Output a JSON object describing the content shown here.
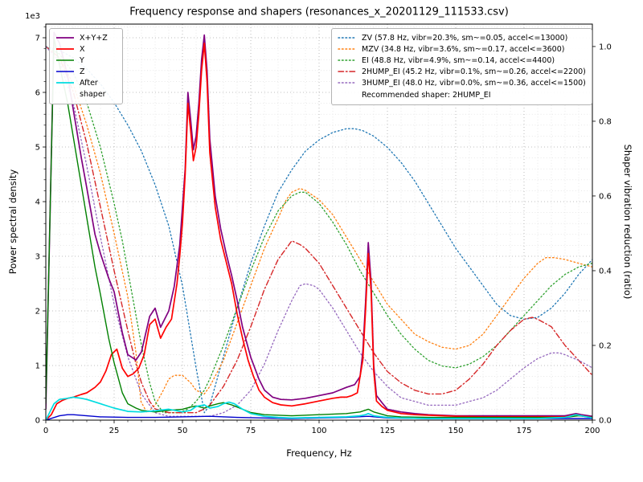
{
  "chart_data": {
    "type": "line",
    "title": "Frequency response and shapers (resonances_x_20201129_111533.csv)",
    "xlabel": "Frequency, Hz",
    "ylabel_left": "Power spectral density",
    "ylabel_right": "Shaper vibration reduction (ratio)",
    "legend_note": "Recommended shaper: 2HUMP_EI",
    "grid": {
      "major": true,
      "minor": true
    },
    "x_axis": {
      "lim": [
        0,
        200
      ],
      "minor_step": 5,
      "tick_vals": [
        0,
        25,
        50,
        75,
        100,
        125,
        150,
        175,
        200
      ],
      "tick_labels": [
        "0",
        "25",
        "50",
        "75",
        "100",
        "125",
        "150",
        "175",
        "200"
      ]
    },
    "left_axis": {
      "lim": [
        0,
        7.25
      ],
      "unit_scale": 1000,
      "offset_label": "1e3",
      "minor_step": 0.2,
      "tick_vals": [
        0,
        1,
        2,
        3,
        4,
        5,
        6,
        7
      ],
      "tick_labels": [
        "0",
        "1",
        "2",
        "3",
        "4",
        "5",
        "6",
        "7"
      ]
    },
    "right_axis": {
      "lim": [
        0,
        1.06
      ],
      "tick_vals": [
        0,
        0.2,
        0.4,
        0.6,
        0.8,
        1.0
      ],
      "tick_labels": [
        "0.0",
        "0.2",
        "0.4",
        "0.6",
        "0.8",
        "1.0"
      ]
    },
    "series": [
      {
        "name": "ZV",
        "label": "ZV (57.8 Hz, vibr=20.3%, sm~=0.05, accel<=13000)",
        "legend": "right",
        "axis": "right",
        "color": "#1f77b4",
        "style": "dotted",
        "width": 1.3,
        "x": [
          0,
          5,
          10,
          15,
          20,
          25,
          30,
          35,
          40,
          45,
          50,
          55,
          58,
          60,
          65,
          70,
          75,
          80,
          85,
          90,
          95,
          100,
          105,
          110,
          113,
          116,
          120,
          125,
          130,
          135,
          140,
          145,
          150,
          155,
          160,
          165,
          170,
          175,
          180,
          185,
          190,
          195,
          200
        ],
        "y": [
          1.0,
          0.99,
          0.97,
          0.94,
          0.9,
          0.85,
          0.79,
          0.72,
          0.63,
          0.52,
          0.36,
          0.14,
          0.02,
          0.04,
          0.17,
          0.3,
          0.42,
          0.52,
          0.61,
          0.67,
          0.72,
          0.75,
          0.77,
          0.78,
          0.78,
          0.775,
          0.76,
          0.73,
          0.69,
          0.64,
          0.58,
          0.52,
          0.46,
          0.41,
          0.36,
          0.31,
          0.28,
          0.27,
          0.275,
          0.3,
          0.34,
          0.39,
          0.43
        ]
      },
      {
        "name": "MZV",
        "label": "MZV (34.8 Hz, vibr=3.6%, sm~=0.17, accel<=3600)",
        "legend": "right",
        "axis": "right",
        "color": "#ff7f0e",
        "style": "dotted",
        "width": 1.3,
        "x": [
          0,
          5,
          10,
          15,
          20,
          25,
          30,
          33,
          34.8,
          37,
          40,
          43,
          45,
          47,
          50,
          53,
          55,
          58,
          60,
          65,
          70,
          75,
          80,
          85,
          88,
          90,
          93,
          95,
          100,
          105,
          110,
          115,
          120,
          125,
          130,
          135,
          140,
          145,
          150,
          155,
          160,
          165,
          170,
          175,
          180,
          183,
          186,
          190,
          195,
          200
        ],
        "y": [
          1.0,
          0.97,
          0.9,
          0.79,
          0.66,
          0.5,
          0.33,
          0.18,
          0.05,
          0.02,
          0.04,
          0.08,
          0.11,
          0.12,
          0.12,
          0.1,
          0.08,
          0.07,
          0.09,
          0.16,
          0.26,
          0.36,
          0.46,
          0.54,
          0.59,
          0.61,
          0.62,
          0.615,
          0.59,
          0.55,
          0.49,
          0.43,
          0.37,
          0.31,
          0.27,
          0.23,
          0.21,
          0.195,
          0.19,
          0.2,
          0.23,
          0.28,
          0.33,
          0.38,
          0.42,
          0.435,
          0.435,
          0.43,
          0.42,
          0.41
        ]
      },
      {
        "name": "EI",
        "label": "EI (48.8 Hz, vibr=4.9%, sm~=0.14, accel<=4400)",
        "legend": "right",
        "axis": "right",
        "color": "#2ca02c",
        "style": "dotted",
        "width": 1.3,
        "x": [
          0,
          5,
          10,
          15,
          20,
          25,
          28,
          30,
          33,
          35,
          38,
          40,
          43,
          45,
          49,
          52,
          55,
          58,
          60,
          65,
          70,
          75,
          80,
          85,
          90,
          93,
          95,
          100,
          105,
          110,
          115,
          120,
          125,
          130,
          135,
          140,
          145,
          150,
          155,
          160,
          165,
          170,
          175,
          180,
          185,
          190,
          195,
          200
        ],
        "y": [
          1.0,
          0.98,
          0.93,
          0.85,
          0.73,
          0.58,
          0.48,
          0.4,
          0.28,
          0.2,
          0.1,
          0.05,
          0.02,
          0.02,
          0.02,
          0.03,
          0.05,
          0.08,
          0.11,
          0.2,
          0.3,
          0.4,
          0.49,
          0.56,
          0.6,
          0.61,
          0.61,
          0.58,
          0.53,
          0.47,
          0.4,
          0.34,
          0.28,
          0.23,
          0.19,
          0.16,
          0.145,
          0.14,
          0.15,
          0.17,
          0.2,
          0.24,
          0.28,
          0.32,
          0.36,
          0.39,
          0.41,
          0.42
        ]
      },
      {
        "name": "2HUMP_EI",
        "label": "2HUMP_EI (45.2 Hz, vibr=0.1%, sm~=0.26, accel<=2200)",
        "legend": "right",
        "axis": "right",
        "color": "#d62728",
        "style": "dashdot",
        "width": 1.4,
        "x": [
          0,
          5,
          10,
          15,
          20,
          25,
          30,
          33,
          35,
          38,
          40,
          45,
          50,
          55,
          58,
          60,
          65,
          70,
          75,
          80,
          85,
          88,
          90,
          93,
          95,
          100,
          105,
          110,
          115,
          120,
          125,
          130,
          135,
          140,
          145,
          150,
          155,
          160,
          165,
          170,
          175,
          178,
          180,
          185,
          190,
          195,
          200
        ],
        "y": [
          1.0,
          0.97,
          0.88,
          0.74,
          0.57,
          0.4,
          0.24,
          0.15,
          0.1,
          0.05,
          0.03,
          0.02,
          0.02,
          0.02,
          0.03,
          0.04,
          0.09,
          0.16,
          0.25,
          0.35,
          0.43,
          0.46,
          0.48,
          0.47,
          0.46,
          0.42,
          0.36,
          0.3,
          0.24,
          0.18,
          0.13,
          0.1,
          0.08,
          0.07,
          0.07,
          0.08,
          0.11,
          0.15,
          0.2,
          0.24,
          0.27,
          0.275,
          0.27,
          0.25,
          0.2,
          0.16,
          0.12
        ]
      },
      {
        "name": "3HUMP_EI",
        "label": "3HUMP_EI (48.0 Hz, vibr=0.0%, sm~=0.36, accel<=1500)",
        "legend": "right",
        "axis": "right",
        "color": "#9467bd",
        "style": "dotted",
        "width": 1.3,
        "x": [
          0,
          5,
          10,
          15,
          20,
          25,
          30,
          35,
          40,
          45,
          50,
          55,
          60,
          65,
          70,
          75,
          80,
          85,
          90,
          93,
          95,
          98,
          100,
          105,
          110,
          115,
          120,
          125,
          130,
          135,
          140,
          145,
          150,
          155,
          160,
          165,
          170,
          175,
          180,
          185,
          188,
          190,
          195,
          200
        ],
        "y": [
          1.0,
          0.96,
          0.85,
          0.68,
          0.49,
          0.31,
          0.17,
          0.07,
          0.02,
          0.01,
          0.01,
          0.01,
          0.01,
          0.02,
          0.04,
          0.08,
          0.15,
          0.24,
          0.32,
          0.36,
          0.365,
          0.36,
          0.35,
          0.3,
          0.24,
          0.18,
          0.13,
          0.09,
          0.06,
          0.05,
          0.04,
          0.04,
          0.04,
          0.05,
          0.06,
          0.08,
          0.11,
          0.14,
          0.165,
          0.18,
          0.18,
          0.175,
          0.16,
          0.14
        ]
      },
      {
        "name": "X+Y+Z",
        "label": "X+Y+Z",
        "legend": "left",
        "axis": "left",
        "color": "#800080",
        "style": "solid",
        "width": 1.7,
        "x": [
          0,
          3,
          5,
          8,
          10,
          13,
          15,
          18,
          20,
          23,
          25,
          28,
          30,
          33,
          35,
          38,
          40,
          42,
          45,
          47,
          49,
          51,
          52,
          53,
          54,
          55,
          56,
          57,
          58,
          59,
          60,
          62,
          64,
          66,
          68,
          70,
          72,
          75,
          78,
          80,
          83,
          86,
          90,
          95,
          100,
          105,
          110,
          113,
          115,
          116,
          117,
          118,
          119,
          120,
          121,
          123,
          125,
          130,
          135,
          140,
          150,
          160,
          170,
          180,
          190,
          194,
          196,
          200
        ],
        "y": [
          0.2,
          7.1,
          6.9,
          6.3,
          5.7,
          4.8,
          4.25,
          3.4,
          3.05,
          2.6,
          2.35,
          1.6,
          1.2,
          1.1,
          1.25,
          1.9,
          2.05,
          1.7,
          2.0,
          2.45,
          3.2,
          4.6,
          6.0,
          5.5,
          4.95,
          5.2,
          5.8,
          6.6,
          7.05,
          6.4,
          5.15,
          4.1,
          3.5,
          3.05,
          2.65,
          2.2,
          1.7,
          1.15,
          0.75,
          0.55,
          0.42,
          0.38,
          0.37,
          0.4,
          0.45,
          0.5,
          0.6,
          0.65,
          0.8,
          1.25,
          2.15,
          3.25,
          2.55,
          1.0,
          0.45,
          0.32,
          0.2,
          0.15,
          0.12,
          0.1,
          0.08,
          0.08,
          0.08,
          0.08,
          0.08,
          0.12,
          0.1,
          0.07
        ]
      },
      {
        "name": "X",
        "label": "X",
        "legend": "left",
        "axis": "left",
        "color": "#ff0000",
        "style": "solid",
        "width": 1.7,
        "x": [
          0,
          2,
          4,
          6,
          8,
          10,
          13,
          15,
          18,
          20,
          22,
          24,
          26,
          28,
          30,
          32,
          34,
          36,
          38,
          40,
          42,
          44,
          46,
          48,
          49,
          50,
          51,
          52,
          53,
          54,
          55,
          56,
          57,
          58,
          59,
          60,
          62,
          64,
          66,
          68,
          70,
          72,
          74,
          76,
          78,
          80,
          83,
          86,
          90,
          95,
          100,
          105,
          108,
          110,
          112,
          114,
          116,
          117,
          118,
          119,
          120,
          121,
          123,
          125,
          130,
          135,
          140,
          150,
          160,
          170,
          180,
          190,
          194,
          196,
          200
        ],
        "y": [
          0,
          0.1,
          0.3,
          0.36,
          0.4,
          0.42,
          0.47,
          0.5,
          0.6,
          0.7,
          0.9,
          1.2,
          1.3,
          0.95,
          0.8,
          0.85,
          0.95,
          1.2,
          1.75,
          1.85,
          1.5,
          1.7,
          1.85,
          2.5,
          3.0,
          3.6,
          4.5,
          5.8,
          5.3,
          4.75,
          5.0,
          5.6,
          6.4,
          6.9,
          6.2,
          4.9,
          3.9,
          3.3,
          2.9,
          2.5,
          1.95,
          1.5,
          1.1,
          0.8,
          0.55,
          0.42,
          0.32,
          0.28,
          0.26,
          0.3,
          0.35,
          0.4,
          0.42,
          0.42,
          0.45,
          0.5,
          1.1,
          2.0,
          3.05,
          2.4,
          0.9,
          0.35,
          0.25,
          0.18,
          0.12,
          0.1,
          0.09,
          0.07,
          0.06,
          0.06,
          0.06,
          0.06,
          0.1,
          0.08,
          0.05
        ]
      },
      {
        "name": "Y",
        "label": "Y",
        "legend": "left",
        "axis": "left",
        "color": "#008000",
        "style": "solid",
        "width": 1.4,
        "x": [
          0,
          3,
          5,
          8,
          10,
          13,
          15,
          18,
          20,
          23,
          25,
          28,
          30,
          33,
          35,
          40,
          45,
          50,
          53,
          55,
          58,
          60,
          63,
          65,
          68,
          70,
          75,
          80,
          90,
          100,
          110,
          115,
          118,
          120,
          125,
          130,
          140,
          150,
          160,
          170,
          180,
          190,
          195,
          200
        ],
        "y": [
          0.3,
          7.0,
          6.5,
          5.8,
          5.2,
          4.3,
          3.7,
          2.8,
          2.3,
          1.5,
          1.05,
          0.5,
          0.3,
          0.22,
          0.18,
          0.15,
          0.18,
          0.2,
          0.24,
          0.26,
          0.22,
          0.26,
          0.3,
          0.32,
          0.28,
          0.24,
          0.14,
          0.1,
          0.08,
          0.1,
          0.12,
          0.15,
          0.2,
          0.15,
          0.08,
          0.06,
          0.05,
          0.05,
          0.05,
          0.05,
          0.05,
          0.05,
          0.08,
          0.05
        ]
      },
      {
        "name": "Z",
        "label": "Z",
        "legend": "left",
        "axis": "left",
        "color": "#0000cd",
        "style": "solid",
        "width": 1.4,
        "x": [
          0,
          5,
          8,
          10,
          15,
          20,
          30,
          40,
          50,
          60,
          70,
          80,
          90,
          100,
          110,
          118,
          125,
          140,
          160,
          180,
          200
        ],
        "y": [
          0,
          0.08,
          0.1,
          0.1,
          0.08,
          0.06,
          0.05,
          0.05,
          0.06,
          0.07,
          0.05,
          0.04,
          0.03,
          0.04,
          0.05,
          0.07,
          0.04,
          0.03,
          0.03,
          0.03,
          0.03
        ]
      },
      {
        "name": "After shaper",
        "label": "After shaper",
        "legend": "left",
        "axis": "left",
        "color": "#00dce0",
        "style": "solid",
        "width": 1.7,
        "x": [
          0,
          3,
          5,
          8,
          10,
          13,
          15,
          20,
          25,
          30,
          35,
          40,
          45,
          48,
          50,
          53,
          55,
          58,
          60,
          63,
          65,
          67,
          69,
          72,
          75,
          80,
          85,
          90,
          100,
          110,
          115,
          117,
          118,
          120,
          125,
          130,
          140,
          150,
          160,
          170,
          180,
          190,
          194,
          196,
          200
        ],
        "y": [
          0,
          0.3,
          0.38,
          0.4,
          0.42,
          0.4,
          0.38,
          0.3,
          0.22,
          0.16,
          0.15,
          0.17,
          0.2,
          0.17,
          0.15,
          0.18,
          0.25,
          0.28,
          0.22,
          0.25,
          0.3,
          0.33,
          0.3,
          0.2,
          0.12,
          0.07,
          0.05,
          0.04,
          0.05,
          0.06,
          0.08,
          0.1,
          0.12,
          0.08,
          0.05,
          0.04,
          0.03,
          0.03,
          0.03,
          0.03,
          0.03,
          0.05,
          0.1,
          0.08,
          0.04
        ]
      }
    ]
  }
}
